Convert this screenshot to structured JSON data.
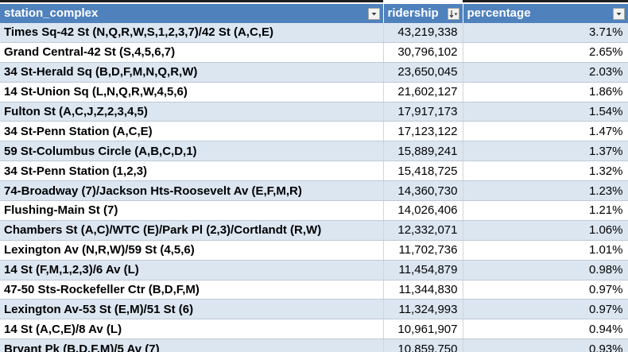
{
  "table": {
    "headers": {
      "station_complex": "station_complex",
      "ridership": "ridership",
      "percentage": "percentage"
    },
    "filter_icon": "dropdown-filter-icon",
    "sort_icon": "sort-descending-filter-icon",
    "rows": [
      {
        "station": "Times Sq-42 St (N,Q,R,W,S,1,2,3,7)/42 St (A,C,E)",
        "ridership": "43,219,338",
        "percentage": "3.71%"
      },
      {
        "station": "Grand Central-42 St (S,4,5,6,7)",
        "ridership": "30,796,102",
        "percentage": "2.65%"
      },
      {
        "station": "34 St-Herald Sq (B,D,F,M,N,Q,R,W)",
        "ridership": "23,650,045",
        "percentage": "2.03%"
      },
      {
        "station": "14 St-Union Sq (L,N,Q,R,W,4,5,6)",
        "ridership": "21,602,127",
        "percentage": "1.86%"
      },
      {
        "station": "Fulton St (A,C,J,Z,2,3,4,5)",
        "ridership": "17,917,173",
        "percentage": "1.54%"
      },
      {
        "station": "34 St-Penn Station (A,C,E)",
        "ridership": "17,123,122",
        "percentage": "1.47%"
      },
      {
        "station": "59 St-Columbus Circle (A,B,C,D,1)",
        "ridership": "15,889,241",
        "percentage": "1.37%"
      },
      {
        "station": "34 St-Penn Station (1,2,3)",
        "ridership": "15,418,725",
        "percentage": "1.32%"
      },
      {
        "station": "74-Broadway (7)/Jackson Hts-Roosevelt Av (E,F,M,R)",
        "ridership": "14,360,730",
        "percentage": "1.23%"
      },
      {
        "station": "Flushing-Main St (7)",
        "ridership": "14,026,406",
        "percentage": "1.21%"
      },
      {
        "station": "Chambers St (A,C)/WTC (E)/Park Pl (2,3)/Cortlandt (R,W)",
        "ridership": "12,332,071",
        "percentage": "1.06%"
      },
      {
        "station": "Lexington Av (N,R,W)/59 St (4,5,6)",
        "ridership": "11,702,736",
        "percentage": "1.01%"
      },
      {
        "station": "14 St (F,M,1,2,3)/6 Av (L)",
        "ridership": "11,454,879",
        "percentage": "0.98%"
      },
      {
        "station": "47-50 Sts-Rockefeller Ctr (B,D,F,M)",
        "ridership": "11,344,830",
        "percentage": "0.97%"
      },
      {
        "station": "Lexington Av-53 St (E,M)/51 St (6)",
        "ridership": "11,324,993",
        "percentage": "0.97%"
      },
      {
        "station": "14 St (A,C,E)/8 Av (L)",
        "ridership": "10,961,907",
        "percentage": "0.94%"
      },
      {
        "station": "Bryant Pk (B,D,F,M)/5 Av (7)",
        "ridership": "10,859,750",
        "percentage": "0.93%"
      }
    ]
  },
  "colors": {
    "header_bg": "#4f81bd",
    "header_text": "#ffffff",
    "band_row": "#dce6f1",
    "plain_row": "#ffffff"
  }
}
